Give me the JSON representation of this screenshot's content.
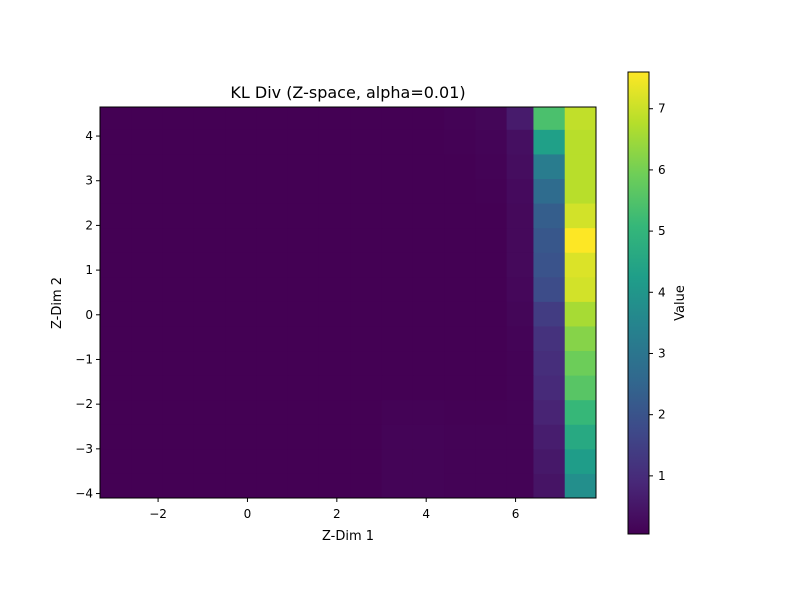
{
  "chart_data": {
    "type": "heatmap",
    "title": "KL Div (Z-space, alpha=0.01)",
    "xlabel": "Z-Dim 1",
    "ylabel": "Z-Dim 2",
    "xlim": [
      -3.3,
      7.8
    ],
    "ylim": [
      -4.1,
      4.65
    ],
    "x_ticks": [
      -2,
      0,
      2,
      4,
      6
    ],
    "y_ticks": [
      -4,
      -3,
      -2,
      -1,
      0,
      1,
      2,
      3,
      4
    ],
    "colorbar": {
      "label": "Value",
      "colormap": "viridis",
      "vmin": 0.05,
      "vmax": 7.6,
      "ticks": [
        1,
        2,
        3,
        4,
        5,
        6,
        7
      ]
    },
    "grid": false,
    "x_edges": [
      -3.3,
      -2.6,
      -1.9,
      -1.2,
      -0.5,
      0.2,
      0.9,
      1.6,
      2.3,
      3.0,
      3.7,
      4.4,
      5.1,
      5.8,
      6.4,
      7.1,
      7.8
    ],
    "y_edges": [
      -4.1,
      -3.55,
      -3.0,
      -2.45,
      -1.9,
      -1.35,
      -0.8,
      -0.25,
      0.3,
      0.85,
      1.4,
      1.95,
      2.5,
      3.05,
      3.6,
      4.15,
      4.65
    ],
    "values": [
      [
        0.05,
        0.05,
        0.05,
        0.05,
        0.05,
        0.05,
        0.05,
        0.05,
        0.05,
        0.12,
        0.12,
        0.1,
        0.1,
        0.1,
        0.45,
        3.8
      ],
      [
        0.05,
        0.05,
        0.05,
        0.05,
        0.05,
        0.05,
        0.05,
        0.05,
        0.05,
        0.12,
        0.12,
        0.1,
        0.1,
        0.1,
        0.55,
        4.2
      ],
      [
        0.05,
        0.05,
        0.05,
        0.05,
        0.05,
        0.05,
        0.05,
        0.05,
        0.05,
        0.12,
        0.12,
        0.1,
        0.1,
        0.1,
        0.65,
        4.6
      ],
      [
        0.05,
        0.05,
        0.05,
        0.05,
        0.05,
        0.05,
        0.05,
        0.05,
        0.05,
        0.1,
        0.1,
        0.08,
        0.08,
        0.1,
        0.8,
        5.1
      ],
      [
        0.05,
        0.05,
        0.05,
        0.05,
        0.05,
        0.05,
        0.05,
        0.05,
        0.05,
        0.06,
        0.06,
        0.06,
        0.06,
        0.1,
        0.95,
        5.6
      ],
      [
        0.05,
        0.05,
        0.05,
        0.05,
        0.05,
        0.05,
        0.05,
        0.05,
        0.05,
        0.05,
        0.05,
        0.05,
        0.05,
        0.1,
        1.05,
        5.9
      ],
      [
        0.05,
        0.05,
        0.05,
        0.05,
        0.05,
        0.05,
        0.05,
        0.05,
        0.05,
        0.05,
        0.05,
        0.05,
        0.05,
        0.12,
        1.15,
        6.2
      ],
      [
        0.05,
        0.05,
        0.05,
        0.05,
        0.05,
        0.05,
        0.05,
        0.05,
        0.05,
        0.05,
        0.05,
        0.05,
        0.05,
        0.15,
        1.4,
        6.6
      ],
      [
        0.05,
        0.05,
        0.05,
        0.05,
        0.05,
        0.05,
        0.05,
        0.05,
        0.05,
        0.05,
        0.05,
        0.05,
        0.05,
        0.18,
        1.8,
        7.1
      ],
      [
        0.05,
        0.05,
        0.05,
        0.05,
        0.05,
        0.05,
        0.05,
        0.05,
        0.05,
        0.05,
        0.05,
        0.05,
        0.05,
        0.22,
        2.0,
        7.2
      ],
      [
        0.05,
        0.05,
        0.05,
        0.05,
        0.05,
        0.05,
        0.05,
        0.05,
        0.05,
        0.05,
        0.05,
        0.05,
        0.05,
        0.22,
        2.1,
        7.6
      ],
      [
        0.05,
        0.05,
        0.05,
        0.05,
        0.05,
        0.05,
        0.05,
        0.05,
        0.05,
        0.05,
        0.05,
        0.05,
        0.06,
        0.22,
        2.3,
        7.1
      ],
      [
        0.05,
        0.05,
        0.05,
        0.05,
        0.05,
        0.05,
        0.05,
        0.05,
        0.05,
        0.05,
        0.05,
        0.05,
        0.08,
        0.25,
        2.7,
        6.8
      ],
      [
        0.05,
        0.05,
        0.05,
        0.05,
        0.05,
        0.05,
        0.05,
        0.05,
        0.05,
        0.05,
        0.05,
        0.06,
        0.1,
        0.3,
        3.2,
        6.8
      ],
      [
        0.05,
        0.05,
        0.05,
        0.05,
        0.05,
        0.05,
        0.05,
        0.05,
        0.05,
        0.05,
        0.05,
        0.08,
        0.12,
        0.35,
        4.3,
        6.8
      ],
      [
        0.05,
        0.05,
        0.05,
        0.05,
        0.05,
        0.05,
        0.05,
        0.05,
        0.05,
        0.05,
        0.06,
        0.1,
        0.15,
        0.6,
        5.4,
        6.9
      ]
    ]
  }
}
